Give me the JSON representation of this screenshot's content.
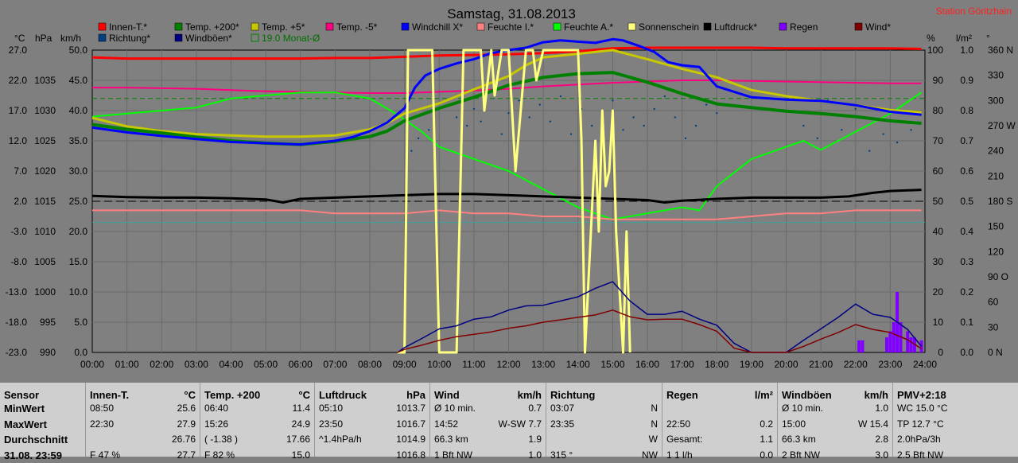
{
  "header": {
    "title": "Samstag, 31.08.2013",
    "station": "Station Göritzhain",
    "unit_c": "°C",
    "unit_hpa": "hPa",
    "unit_kmh": "km/h",
    "unit_pct": "%",
    "unit_lm2": "l/m²",
    "unit_deg": "°"
  },
  "legend": [
    {
      "label": "Innen-T.*",
      "color": "#ff0000"
    },
    {
      "label": "Temp. +200*",
      "color": "#008000"
    },
    {
      "label": "Temp. +5*",
      "color": "#c8c800"
    },
    {
      "label": "Temp. -5*",
      "color": "#ff0080"
    },
    {
      "label": "Windchill X*",
      "color": "#0000ff"
    },
    {
      "label": "Feuchte I.*",
      "color": "#ff8080"
    },
    {
      "label": "Feuchte A.*",
      "color": "#00ff00"
    },
    {
      "label": "Sonnenschein",
      "color": "#ffff80"
    },
    {
      "label": "Luftdruck*",
      "color": "#000000"
    },
    {
      "label": "Regen",
      "color": "#8000ff"
    },
    {
      "label": "Wind*",
      "color": "#800000"
    },
    {
      "label": "Richtung*",
      "color": "#004080"
    },
    {
      "label": "Windböen*",
      "color": "#000080"
    },
    {
      "label": "19.0 Monat-Ø",
      "color": "#008000"
    }
  ],
  "chart_data": {
    "type": "line",
    "title": "Samstag, 31.08.2013",
    "x_ticks": [
      "00:00",
      "01:00",
      "02:00",
      "03:00",
      "04:00",
      "05:00",
      "06:00",
      "07:00",
      "08:00",
      "09:00",
      "10:00",
      "11:00",
      "12:00",
      "13:00",
      "14:00",
      "15:00",
      "16:00",
      "17:00",
      "18:00",
      "19:00",
      "20:00",
      "21:00",
      "22:00",
      "23:00",
      "24:00"
    ],
    "axes": {
      "temp_c": {
        "ticks": [
          "27.0",
          "22.0",
          "17.0",
          "12.0",
          "7.0",
          "2.0",
          "-3.0",
          "-8.0",
          "-13.0",
          "-18.0",
          "-23.0"
        ],
        "range": [
          -23,
          27
        ]
      },
      "pressure_hpa": {
        "ticks": [
          "1035",
          "1030",
          "1025",
          "1020",
          "1015",
          "1010",
          "1005",
          "1000",
          "995",
          "990"
        ],
        "range": [
          990,
          1040
        ]
      },
      "wind_kmh": {
        "ticks": [
          "50.0",
          "45.0",
          "40.0",
          "35.0",
          "30.0",
          "25.0",
          "20.0",
          "15.0",
          "10.0",
          "5.0",
          "0.0"
        ],
        "range": [
          0,
          50
        ]
      },
      "humidity_pct": {
        "ticks": [
          "100",
          "90",
          "80",
          "70",
          "60",
          "50",
          "40",
          "30",
          "20",
          "10",
          "0"
        ],
        "range": [
          0,
          100
        ]
      },
      "rain_lm2": {
        "ticks": [
          "1.0",
          "0.9",
          "0.8",
          "0.7",
          "0.6",
          "0.5",
          "0.4",
          "0.3",
          "0.2",
          "0.1",
          "0.0"
        ],
        "range": [
          0,
          1
        ]
      },
      "direction_deg": {
        "ticks": [
          "360 N",
          "330",
          "300",
          "270 W",
          "240",
          "210",
          "180 S",
          "150",
          "120",
          "90 O",
          "60",
          "30",
          "0 N"
        ],
        "range": [
          0,
          360
        ]
      }
    },
    "month_avg_c": 19.0,
    "series": [
      {
        "name": "Innen-T.*",
        "axis": "temp_c",
        "color": "#ff0000",
        "width": 3,
        "x": [
          0,
          1,
          2,
          3,
          4,
          5,
          6,
          7,
          8,
          9,
          10,
          11,
          12,
          13,
          14,
          15,
          16,
          17,
          18,
          19,
          20,
          21,
          22,
          23,
          23.9
        ],
        "y": [
          25.8,
          25.6,
          25.6,
          25.6,
          25.6,
          25.6,
          25.6,
          25.7,
          25.7,
          25.9,
          26.1,
          26.2,
          26.3,
          26.5,
          26.8,
          27.3,
          27.4,
          27.4,
          27.4,
          27.4,
          27.3,
          27.3,
          27.3,
          27.3,
          27.2
        ]
      },
      {
        "name": "Temp. -5*",
        "axis": "temp_c",
        "color": "#ff0080",
        "width": 2,
        "x": [
          0,
          1,
          2,
          3,
          4,
          5,
          6,
          7,
          8,
          9,
          10,
          11,
          12,
          13,
          14,
          15,
          16,
          17,
          18,
          19,
          20,
          21,
          22,
          23,
          23.9
        ],
        "y": [
          20.8,
          20.8,
          20.7,
          20.6,
          20.4,
          20.2,
          20.1,
          20.0,
          19.9,
          19.9,
          20.1,
          20.3,
          20.6,
          21.0,
          21.3,
          21.6,
          21.8,
          22.0,
          22.0,
          21.9,
          21.8,
          21.7,
          21.6,
          21.5,
          21.5
        ]
      },
      {
        "name": "Feuchte A.*",
        "axis": "humidity_pct",
        "color": "#00ff00",
        "width": 2,
        "x": [
          0,
          1,
          2,
          3,
          4,
          5,
          6,
          7,
          8,
          8.6,
          9,
          9.5,
          10,
          11,
          12,
          13,
          14,
          14.5,
          15,
          16,
          17,
          17.5,
          18,
          19,
          20,
          20.5,
          21,
          22,
          23,
          23.9
        ],
        "y": [
          78,
          79,
          80,
          81,
          84,
          85,
          86,
          86,
          84,
          80,
          77,
          73,
          68,
          64,
          60,
          54,
          48,
          46,
          44,
          46,
          48,
          47,
          55,
          64,
          68,
          70,
          67,
          73,
          79,
          86
        ]
      },
      {
        "name": "Temp. +5*",
        "axis": "temp_c",
        "color": "#c8c800",
        "width": 3,
        "x": [
          0,
          1,
          2,
          3,
          4,
          5,
          6,
          7,
          8,
          8.5,
          9,
          10,
          11,
          12,
          12.5,
          13,
          14,
          15,
          16,
          17,
          18,
          19,
          20,
          21,
          22,
          23,
          23.9
        ],
        "y": [
          15.8,
          14.4,
          13.6,
          13.1,
          12.9,
          12.7,
          12.7,
          12.9,
          13.9,
          14.9,
          16.5,
          18.2,
          20.5,
          22.7,
          24.5,
          25.8,
          26.4,
          27.0,
          25.5,
          23.9,
          22.5,
          20.4,
          19.4,
          18.6,
          17.9,
          17.1,
          16.7
        ]
      },
      {
        "name": "Temp. +200*",
        "axis": "temp_c",
        "color": "#008000",
        "width": 4,
        "x": [
          0,
          1,
          2,
          3,
          4,
          5,
          6,
          7,
          8,
          8.5,
          9,
          10,
          11,
          12,
          13,
          14,
          15,
          16,
          17,
          18,
          19,
          20,
          21,
          22,
          23,
          23.9
        ],
        "y": [
          14.7,
          13.9,
          13.3,
          12.6,
          12.0,
          11.6,
          11.4,
          11.9,
          12.7,
          13.6,
          15.3,
          17.4,
          19.2,
          21.2,
          22.5,
          23.1,
          23.3,
          21.7,
          19.8,
          18.1,
          17.5,
          16.9,
          16.5,
          16.0,
          15.3,
          14.9
        ]
      },
      {
        "name": "Windchill X*",
        "axis": "temp_c",
        "color": "#0000ff",
        "width": 3,
        "x": [
          0,
          1,
          2,
          3,
          4,
          5,
          6,
          7,
          7.5,
          8,
          8.5,
          9,
          9.3,
          9.6,
          10,
          10.5,
          11,
          11.5,
          12,
          12.5,
          13,
          13.5,
          14,
          14.5,
          15,
          15.3,
          15.8,
          16.2,
          16.6,
          17,
          17.5,
          18,
          19,
          20,
          21,
          22,
          23,
          23.9
        ],
        "y": [
          14.2,
          13.4,
          12.8,
          12.3,
          11.8,
          11.6,
          11.4,
          12.0,
          12.6,
          13.6,
          15.0,
          17.4,
          20.8,
          22.8,
          23.9,
          24.8,
          25.5,
          26.5,
          27.0,
          27.4,
          28.3,
          28.6,
          28.4,
          28.2,
          28.8,
          28.6,
          27.6,
          26.7,
          25.0,
          24.5,
          24.2,
          21.0,
          19.2,
          18.8,
          18.6,
          17.9,
          16.8,
          16.3
        ]
      },
      {
        "name": "Luftdruck*",
        "axis": "pressure_hpa",
        "color": "#000000",
        "width": 3,
        "x": [
          0,
          1,
          2,
          3,
          4,
          5,
          5.5,
          6,
          7,
          8,
          9,
          10,
          11,
          12,
          13,
          14,
          15,
          16,
          16.5,
          17,
          18,
          19,
          20,
          21,
          21.8,
          22.5,
          23,
          23.9
        ],
        "y": [
          1015.9,
          1015.7,
          1015.6,
          1015.6,
          1015.5,
          1015.3,
          1014.8,
          1015.4,
          1015.6,
          1015.8,
          1016.0,
          1016.2,
          1016.2,
          1016.0,
          1015.8,
          1015.6,
          1015.4,
          1015.2,
          1014.8,
          1015.1,
          1015.4,
          1015.6,
          1015.6,
          1015.6,
          1015.8,
          1016.4,
          1016.7,
          1016.9
        ]
      },
      {
        "name": "Feuchte I.*",
        "axis": "humidity_pct",
        "color": "#ff8080",
        "width": 2,
        "x": [
          0,
          1,
          2,
          3,
          4,
          5,
          6,
          7,
          8,
          9,
          10,
          11,
          12,
          13,
          14,
          15,
          16,
          17,
          18,
          19,
          20,
          21,
          22,
          23,
          23.9
        ],
        "y": [
          47,
          47,
          47,
          47,
          47,
          47,
          47,
          46,
          46,
          46,
          47,
          46,
          46,
          45,
          45,
          44,
          44,
          44,
          44,
          45,
          46,
          46,
          47,
          47,
          47
        ]
      },
      {
        "name": "Sonnenschein",
        "axis": "humidity_pct",
        "color": "#ffff80",
        "width": 3,
        "x": [
          8.8,
          9.0,
          9.1,
          9.8,
          10.0,
          10.2,
          10.5,
          10.7,
          11.2,
          11.3,
          11.5,
          11.6,
          11.8,
          12.0,
          12.2,
          12.5,
          12.7,
          12.8,
          13.0,
          13.4,
          13.6,
          13.8,
          14.0,
          14.1,
          14.2,
          14.5,
          14.6,
          14.7,
          14.8,
          14.9,
          15.0,
          15.1,
          15.3,
          15.4,
          15.5
        ],
        "y": [
          0,
          0,
          100,
          100,
          0,
          0,
          0,
          100,
          100,
          80,
          100,
          85,
          100,
          100,
          60,
          100,
          100,
          90,
          100,
          100,
          100,
          100,
          100,
          70,
          0,
          70,
          40,
          80,
          55,
          60,
          80,
          40,
          0,
          40,
          0
        ]
      },
      {
        "name": "Windböen*",
        "axis": "wind_kmh",
        "color": "#000080",
        "width": 1.5,
        "x": [
          8.8,
          9,
          9.5,
          10,
          10.5,
          11,
          11.5,
          12,
          12.5,
          13,
          13.5,
          14,
          14.5,
          15,
          15.5,
          16,
          16.5,
          17,
          17.5,
          18,
          18.5,
          19,
          20,
          20.5,
          21,
          21.5,
          22,
          22.5,
          23,
          23.5,
          23.9
        ],
        "y": [
          0,
          0.8,
          2.3,
          3.9,
          4.4,
          5.5,
          5.9,
          7.0,
          7.7,
          7.8,
          8.5,
          9.2,
          10.6,
          11.7,
          8.5,
          6.3,
          6.3,
          6.8,
          5.5,
          4.5,
          1.5,
          0,
          0,
          2.0,
          3.9,
          5.8,
          8.0,
          6.3,
          5.8,
          3.8,
          1.0
        ]
      },
      {
        "name": "Wind*",
        "axis": "wind_kmh",
        "color": "#800000",
        "width": 1.5,
        "x": [
          8.8,
          9,
          9.5,
          10,
          10.5,
          11,
          11.5,
          12,
          12.5,
          13,
          13.5,
          14,
          14.5,
          15,
          15.5,
          16,
          16.5,
          17,
          17.5,
          18,
          18.5,
          19,
          20,
          20.5,
          21,
          21.5,
          22,
          22.5,
          23,
          23.5,
          23.9
        ],
        "y": [
          0,
          0.5,
          1.2,
          2.0,
          2.6,
          3.0,
          3.4,
          4.0,
          4.4,
          5.0,
          5.4,
          5.8,
          6.2,
          7.0,
          5.9,
          5.4,
          5.5,
          5.5,
          4.6,
          3.5,
          0.7,
          0,
          0,
          1.0,
          2.2,
          3.3,
          4.6,
          3.8,
          3.3,
          2.1,
          0.6
        ]
      }
    ],
    "rain_bars": {
      "axis": "rain_lm2",
      "color": "#8000ff",
      "x": [
        22.1,
        22.2,
        22.9,
        23.0,
        23.1,
        23.2,
        23.3,
        23.5,
        23.6,
        23.7,
        23.9
      ],
      "y": [
        0.04,
        0.04,
        0.05,
        0.07,
        0.1,
        0.2,
        0.1,
        0.07,
        0.05,
        0.05,
        0.04
      ]
    },
    "direction_points": {
      "axis": "direction_deg",
      "color": "#004080",
      "x": [
        9.2,
        9.4,
        9.7,
        10.0,
        10.2,
        10.5,
        10.8,
        11.0,
        11.2,
        11.5,
        11.8,
        12.0,
        12.3,
        12.6,
        12.9,
        13.2,
        13.5,
        13.8,
        14.1,
        14.4,
        14.7,
        15.0,
        15.3,
        15.6,
        15.9,
        16.2,
        16.5,
        16.8,
        17.1,
        17.4,
        17.7,
        18.0,
        20.5,
        20.9,
        21.2,
        21.6,
        22.0,
        22.4,
        22.8,
        23.2,
        23.6
      ],
      "y": [
        240,
        255,
        265,
        245,
        300,
        280,
        270,
        290,
        275,
        310,
        260,
        285,
        300,
        280,
        295,
        275,
        305,
        260,
        290,
        270,
        285,
        300,
        265,
        280,
        270,
        290,
        305,
        280,
        255,
        270,
        295,
        285,
        270,
        255,
        300,
        265,
        290,
        240,
        260,
        250,
        265
      ]
    }
  },
  "stats": {
    "sensor_col": {
      "h": "Sensor",
      "r1": "MinWert",
      "r2": "MaxWert",
      "r3": "Durchschnitt",
      "r4": "31.08. 23:59"
    },
    "innen": {
      "h": "Innen-T.",
      "u": "°C",
      "r1a": "08:50",
      "r1b": "25.6",
      "r2a": "22:30",
      "r2b": "27.9",
      "r3a": "",
      "r3b": "26.76",
      "r4a": "F 47 %",
      "r4b": "27.7"
    },
    "temp": {
      "h": "Temp. +200",
      "u": "°C",
      "r1a": "06:40",
      "r1b": "11.4",
      "r2a": "15:26",
      "r2b": "24.9",
      "r3a": "( -1.38 )",
      "r3b": "17.66",
      "r4a": "F 82 %",
      "r4b": "15.0"
    },
    "druck": {
      "h": "Luftdruck",
      "u": "hPa",
      "r1a": "05:10",
      "r1b": "1013.7",
      "r2a": "23:50",
      "r2b": "1016.7",
      "r3a": "^1.4hPa/h",
      "r3b": "1014.9",
      "r4a": "",
      "r4b": "1016.8"
    },
    "wind": {
      "h": "Wind",
      "u": "km/h",
      "r1a": "Ø 10 min.",
      "r1b": "0.7",
      "r2a": "14:52",
      "r2m": "W-SW 7.7",
      "r3a": "66.3 km",
      "r3b": "1.9",
      "r4a": "1 Bft NW",
      "r4b": "1.0"
    },
    "richtung": {
      "h": "Richtung",
      "u": "",
      "r1a": "03:07",
      "r1b": "N",
      "r2a": "23:35",
      "r2b": "N",
      "r3a": "",
      "r3b": "W",
      "r4a": "315 °",
      "r4b": "NW"
    },
    "regen": {
      "h": "Regen",
      "u": "l/m²",
      "r1a": "",
      "r1b": "",
      "r2a": "22:50",
      "r2b": "0.2",
      "r3a": "Gesamt:",
      "r3b": "1.1",
      "r4a": "1 1 l/h",
      "r4b": "0.0"
    },
    "boeen": {
      "h": "Windböen",
      "u": "km/h",
      "r1a": "Ø 10 min.",
      "r1b": "1.0",
      "r2a": "15:00",
      "r2b": "W 15.4",
      "r3a": "66.3 km",
      "r3b": "2.8",
      "r4a": "2 Bft NW",
      "r4b": "3.0"
    },
    "pmv": {
      "h": "PMV+2:18",
      "r1": "WC 15.0 °C",
      "r2": "TP 12.7 °C",
      "r3": "2.0hPa/3h",
      "r4": "2.5 Bft NW"
    }
  }
}
